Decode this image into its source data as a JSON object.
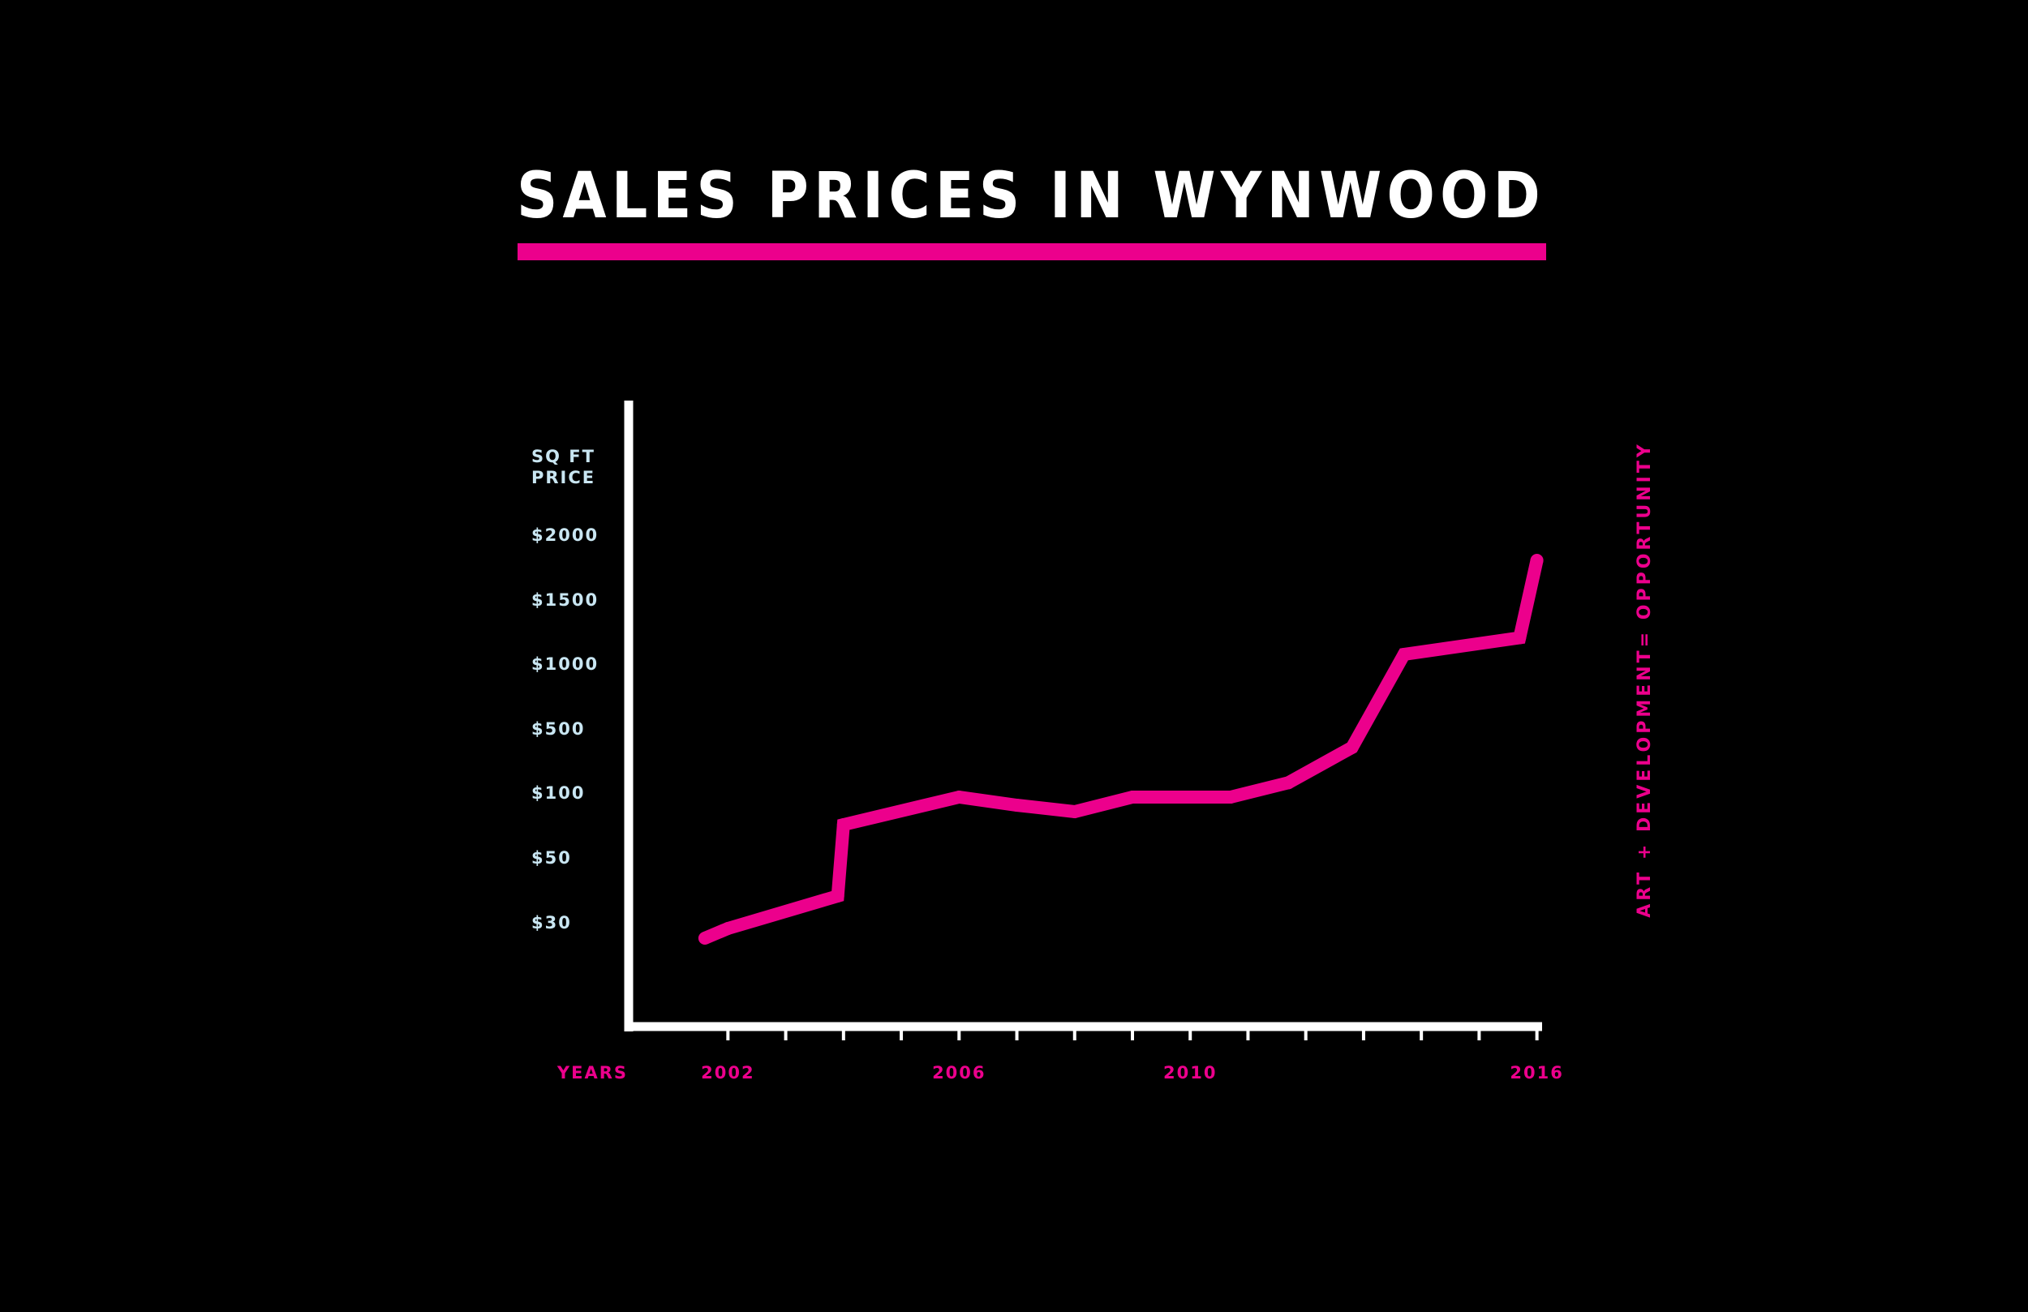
{
  "colors": {
    "background": "#000000",
    "accent": "#EC008C",
    "axis": "#FFFFFF",
    "tick_label": "#C9E6F2",
    "title": "#FFFFFF"
  },
  "chart_data": {
    "type": "line",
    "title": "SALES PRICES IN WYNWOOD",
    "ylabel": [
      "SQ FT",
      "PRICE"
    ],
    "xlabel": "YEARS",
    "side_annotation": "ART + DEVELOPMENT= OPPORTUNITY",
    "y_ticks": [
      {
        "label": "$2000",
        "value": 2000
      },
      {
        "label": "$1500",
        "value": 1500
      },
      {
        "label": "$1000",
        "value": 1000
      },
      {
        "label": "$500",
        "value": 500
      },
      {
        "label": "$100",
        "value": 100
      },
      {
        "label": "$50",
        "value": 50
      },
      {
        "label": "$30",
        "value": 30
      }
    ],
    "x_ticks": [
      {
        "label": "2002",
        "value": 2002
      },
      {
        "label": "2006",
        "value": 2006
      },
      {
        "label": "2010",
        "value": 2010
      },
      {
        "label": "2016",
        "value": 2016
      }
    ],
    "x_minor_ticks": [
      2002,
      2003,
      2004,
      2005,
      2006,
      2007,
      2008,
      2009,
      2010,
      2011,
      2012,
      2013,
      2014,
      2015,
      2016
    ],
    "xlim": [
      2000.9,
      2016.3
    ],
    "grid": false,
    "legend": "none",
    "series": [
      {
        "points": [
          {
            "x": 2001.6,
            "y": 27
          },
          {
            "x": 2002.0,
            "y": 30
          },
          {
            "x": 2003.9,
            "y": 40
          },
          {
            "x": 2004.0,
            "y": 80
          },
          {
            "x": 2006.0,
            "y": 110
          },
          {
            "x": 2007.0,
            "y": 95
          },
          {
            "x": 2008.0,
            "y": 90
          },
          {
            "x": 2009.0,
            "y": 110
          },
          {
            "x": 2010.7,
            "y": 110
          },
          {
            "x": 2011.7,
            "y": 200
          },
          {
            "x": 2012.8,
            "y": 420
          },
          {
            "x": 2013.7,
            "y": 1120
          },
          {
            "x": 2015.7,
            "y": 1250
          },
          {
            "x": 2016.0,
            "y": 1850
          }
        ]
      }
    ]
  }
}
